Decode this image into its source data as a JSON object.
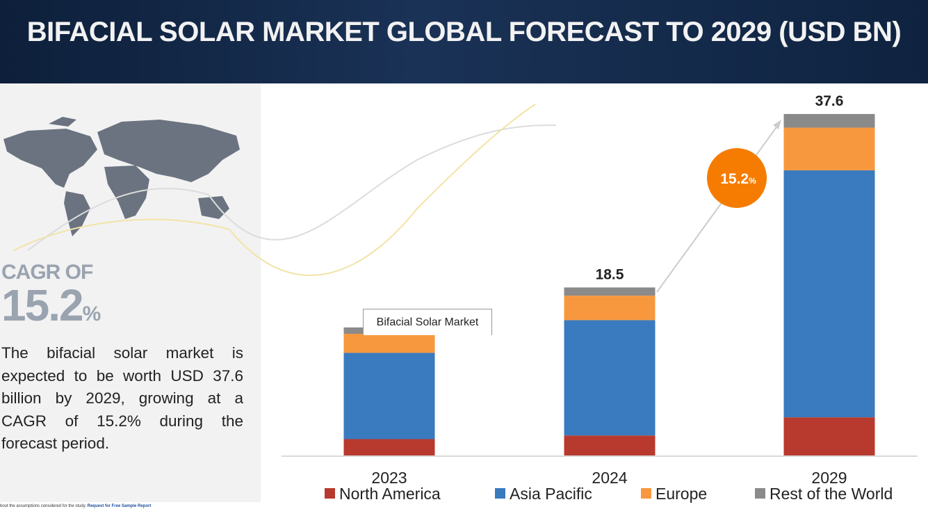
{
  "header": {
    "title": "BIFACIAL SOLAR MARKET GLOBAL FORECAST TO 2029 (USD BN)"
  },
  "sidebar": {
    "cagr_label": "CAGR OF",
    "cagr_value": "15.2",
    "cagr_unit": "%",
    "description": "The bifacial solar market is expected to be worth USD 37.6 billion by 2029, growing at a CAGR of 15.2% during the forecast period."
  },
  "chart_data": {
    "type": "stacked_bar",
    "categories": [
      "2023",
      "2024",
      "2029"
    ],
    "series": [
      {
        "name": "North America",
        "color": "#b83a2e",
        "values": [
          1.8,
          2.2,
          4.2
        ]
      },
      {
        "name": "Asia Pacific",
        "color": "#3a7abf",
        "values": [
          9.5,
          12.7,
          27.2
        ]
      },
      {
        "name": "Europe",
        "color": "#f7983e",
        "values": [
          2.1,
          2.7,
          4.7
        ]
      },
      {
        "name": "Rest of the World",
        "color": "#8a8a8a",
        "values": [
          0.7,
          0.9,
          1.5
        ]
      }
    ],
    "totals": [
      14.1,
      18.5,
      37.6
    ],
    "badge": {
      "value": "15.2",
      "unit": "%"
    },
    "tooltip": "Bifacial Solar Market"
  },
  "footer": {
    "text": "bout the assumptions considered for the study.",
    "link": "Request for Free Sample Report"
  }
}
